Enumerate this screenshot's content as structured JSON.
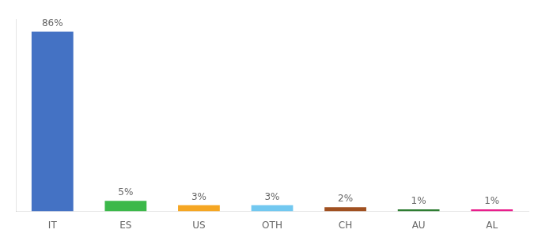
{
  "chart_data": {
    "type": "bar",
    "categories": [
      "IT",
      "ES",
      "US",
      "OTH",
      "CH",
      "AU",
      "AL"
    ],
    "values": [
      86,
      5,
      3,
      3,
      2,
      1,
      1
    ],
    "value_labels": [
      "86%",
      "5%",
      "3%",
      "3%",
      "2%",
      "1%",
      "1%"
    ],
    "colors": [
      "#4472C4",
      "#3CB84A",
      "#F5A623",
      "#72C8F0",
      "#A05020",
      "#2E7D32",
      "#E91E8C"
    ],
    "ylim": [
      0,
      92
    ],
    "tick_labels": "x",
    "grid": false
  }
}
